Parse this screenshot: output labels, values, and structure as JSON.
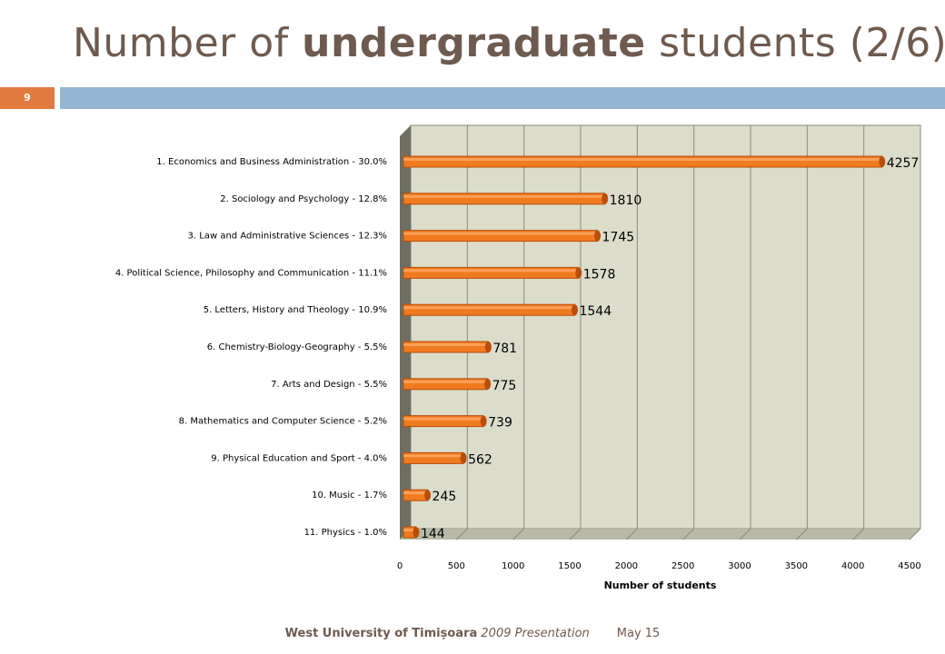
{
  "slide": {
    "title_prefix": "Number of ",
    "title_bold": "undergraduate",
    "title_suffix": " students (2/6)",
    "number": "9"
  },
  "footer": {
    "org": "West University of Timișoara",
    "subtitle": "2009 Presentation",
    "date": "May 15"
  },
  "colors": {
    "bar": "#f07a1e",
    "bar_dark": "#b84e0a",
    "plot_bg": "#dcdccb",
    "band": "#94b6d2",
    "badge": "#e07a3f"
  },
  "chart_data": {
    "type": "bar",
    "orientation": "horizontal",
    "categories": [
      "1. Economics and Business Administration - 30.0%",
      "2. Sociology and Psychology - 12.8%",
      "3. Law and Administrative Sciences - 12.3%",
      "4. Political Science, Philosophy and Communication - 11.1%",
      "5. Letters, History and Theology - 10.9%",
      "6. Chemistry-Biology-Geography - 5.5%",
      "7. Arts and Design - 5.5%",
      "8. Mathematics and Computer Science - 5.2%",
      "9. Physical Education and Sport - 4.0%",
      "10. Music - 1.7%",
      "11. Physics - 1.0%"
    ],
    "values": [
      4257,
      1810,
      1745,
      1578,
      1544,
      781,
      775,
      739,
      562,
      245,
      144
    ],
    "xlabel": "Number of students",
    "ylabel": "",
    "xlim": [
      0,
      4500
    ],
    "xticks": [
      0,
      500,
      1000,
      1500,
      2000,
      2500,
      3000,
      3500,
      4000,
      4500
    ],
    "grid": true,
    "legend": "none"
  }
}
